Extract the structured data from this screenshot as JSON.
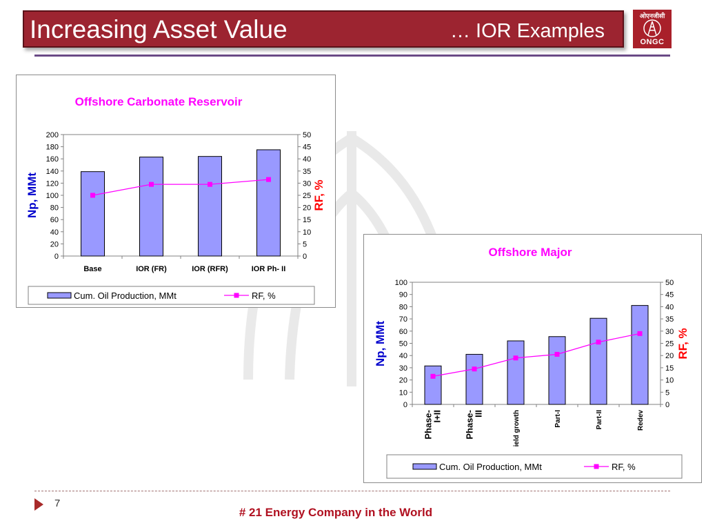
{
  "slide": {
    "title": "Increasing Asset Value",
    "subtitle": "… IOR Examples",
    "page_number": "7",
    "footer": "# 21 Energy Company in the World"
  },
  "logo": {
    "hindi": "ओएनजीसी",
    "text": "ONGC"
  },
  "colors": {
    "title_bg": "#9c2430",
    "bar_fill": "#9999ff",
    "line": "#ff00ff",
    "chart_title": "#ff00ff",
    "y_left_label": "#0000cc",
    "y_right_label": "#ff0000",
    "footer_text": "#b01020",
    "rule": "#6a4a86"
  },
  "chart_data": [
    {
      "type": "bar",
      "title": "Offshore Carbonate Reservoir",
      "categories": [
        "Base",
        "IOR (FR)",
        "IOR (RFR)",
        "IOR Ph- II"
      ],
      "series": [
        {
          "name": "Cum. Oil Production, MMt",
          "type": "bar",
          "axis": "left",
          "values": [
            139,
            163,
            164,
            175
          ]
        },
        {
          "name": "RF, %",
          "type": "line",
          "axis": "right",
          "values": [
            25,
            29.5,
            29.5,
            31.5
          ]
        }
      ],
      "ylabel": "Np, MMt",
      "ylabel_right": "RF, %",
      "ylim": [
        0,
        200
      ],
      "ylim_right": [
        0,
        50
      ],
      "yticks": [
        "0",
        "20",
        "40",
        "60",
        "80",
        "100",
        "120",
        "140",
        "160",
        "180",
        "200"
      ],
      "yticks_right": [
        "0",
        "5",
        "10",
        "15",
        "20",
        "25",
        "30",
        "35",
        "40",
        "45",
        "50"
      ],
      "grid": false,
      "legend": "bottom"
    },
    {
      "type": "bar",
      "title": "Offshore Major",
      "categories": [
        "Phase-I+II",
        "Phase-III",
        "ield growth",
        "Part-I",
        "Part-II",
        "Redev"
      ],
      "category_lines": [
        [
          "Phase-",
          "I+II"
        ],
        [
          "Phase-",
          "III"
        ],
        [
          "ield growth"
        ],
        [
          "Part-I"
        ],
        [
          "Part-II"
        ],
        [
          "Redev"
        ]
      ],
      "series": [
        {
          "name": "Cum. Oil Production, MMt",
          "type": "bar",
          "axis": "left",
          "values": [
            31.5,
            41,
            52,
            55.5,
            70.5,
            81
          ]
        },
        {
          "name": "RF, %",
          "type": "line",
          "axis": "right",
          "values": [
            11.5,
            14.5,
            19,
            20.5,
            25.5,
            29
          ]
        }
      ],
      "ylabel": "Np, MMt",
      "ylabel_right": "RF, %",
      "ylim": [
        0,
        100
      ],
      "ylim_right": [
        0,
        50
      ],
      "yticks": [
        "0",
        "10",
        "20",
        "30",
        "40",
        "50",
        "60",
        "70",
        "80",
        "90",
        "100"
      ],
      "yticks_right": [
        "0",
        "5",
        "10",
        "15",
        "20",
        "25",
        "30",
        "35",
        "40",
        "45",
        "50"
      ],
      "grid": false,
      "legend": "bottom"
    }
  ]
}
